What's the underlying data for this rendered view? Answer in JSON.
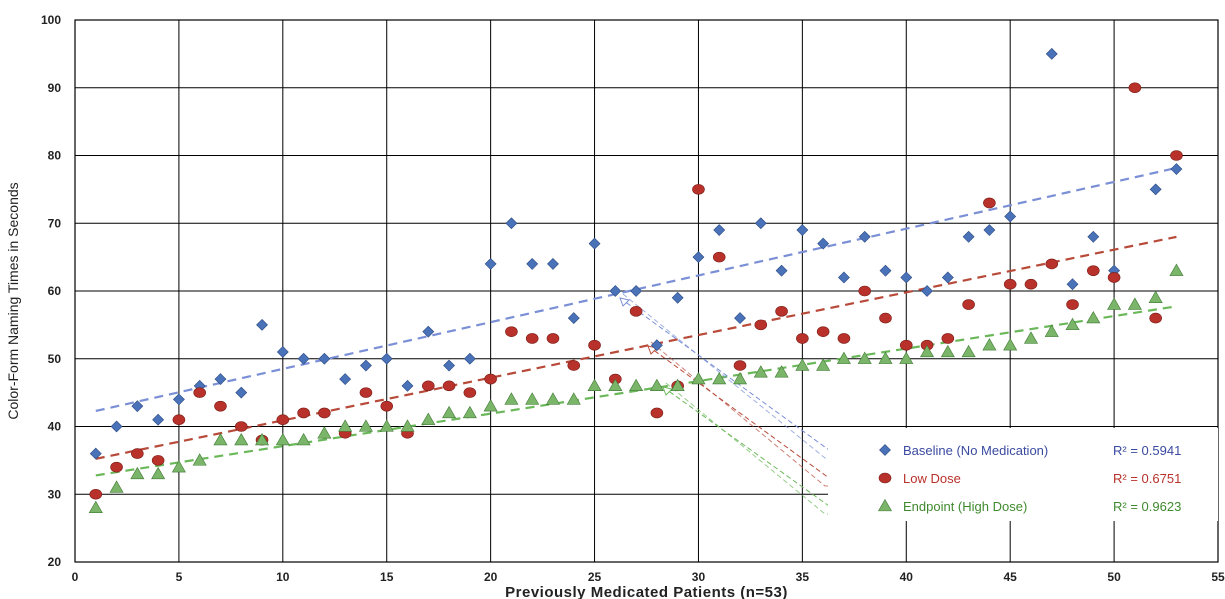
{
  "chart_data": {
    "type": "scatter",
    "xlabel": "Previously Medicated Patients (n=53)",
    "ylabel": "Color-Form Naming Times in Seconds",
    "xlim": [
      0,
      55
    ],
    "ylim": [
      20,
      100
    ],
    "xticks": [
      0,
      5,
      10,
      15,
      20,
      25,
      30,
      35,
      40,
      45,
      50,
      55
    ],
    "yticks": [
      20,
      30,
      40,
      50,
      60,
      70,
      80,
      90,
      100
    ],
    "grid": true,
    "legend_position": "bottom-right",
    "x": [
      1,
      2,
      3,
      4,
      5,
      6,
      7,
      8,
      9,
      10,
      11,
      12,
      13,
      14,
      15,
      16,
      17,
      18,
      19,
      20,
      21,
      22,
      23,
      24,
      25,
      26,
      27,
      28,
      29,
      30,
      31,
      32,
      33,
      34,
      35,
      36,
      37,
      38,
      39,
      40,
      41,
      42,
      43,
      44,
      45,
      46,
      47,
      48,
      49,
      50,
      51,
      52,
      53
    ],
    "series": [
      {
        "name": "Baseline (No Medication)",
        "marker": "diamond",
        "color": "#4a72b8",
        "trend_color": "#7b8fd6",
        "r2_label": "R² = 0.5941",
        "trend": [
          41.6,
          0.69
        ],
        "values": [
          36,
          40,
          43,
          41,
          44,
          46,
          47,
          45,
          55,
          51,
          50,
          50,
          47,
          49,
          50,
          46,
          54,
          49,
          50,
          64,
          70,
          64,
          64,
          56,
          67,
          60,
          60,
          52,
          59,
          65,
          69,
          56,
          70,
          63,
          69,
          67,
          62,
          68,
          63,
          62,
          60,
          62,
          68,
          69,
          71,
          null,
          95,
          61,
          68,
          63,
          null,
          75,
          78
        ]
      },
      {
        "name": "Low Dose",
        "marker": "circle",
        "color": "#b8312a",
        "trend_color": "#b84a3a",
        "r2_label": "R² = 0.6751",
        "trend": [
          34.6,
          0.63
        ],
        "values": [
          30,
          34,
          36,
          35,
          41,
          45,
          43,
          40,
          38,
          41,
          42,
          42,
          39,
          45,
          43,
          39,
          46,
          46,
          45,
          47,
          54,
          53,
          53,
          49,
          52,
          47,
          57,
          42,
          46,
          75,
          65,
          49,
          55,
          57,
          53,
          54,
          53,
          60,
          56,
          52,
          52,
          53,
          58,
          73,
          61,
          61,
          64,
          58,
          63,
          62,
          90,
          56,
          80
        ]
      },
      {
        "name": "Endpoint (High Dose)",
        "marker": "triangle",
        "color": "#7bb56a",
        "trend_color": "#6bb85a",
        "r2_label": "R² = 0.9623",
        "trend": [
          32.3,
          0.48
        ],
        "values": [
          28,
          31,
          33,
          33,
          34,
          35,
          38,
          38,
          38,
          38,
          38,
          39,
          40,
          40,
          40,
          40,
          41,
          42,
          42,
          43,
          44,
          44,
          44,
          44,
          46,
          46,
          46,
          46,
          46,
          47,
          47,
          47,
          48,
          48,
          49,
          49,
          50,
          50,
          50,
          50,
          51,
          51,
          51,
          52,
          52,
          53,
          54,
          55,
          56,
          58,
          58,
          59,
          63
        ]
      }
    ]
  }
}
